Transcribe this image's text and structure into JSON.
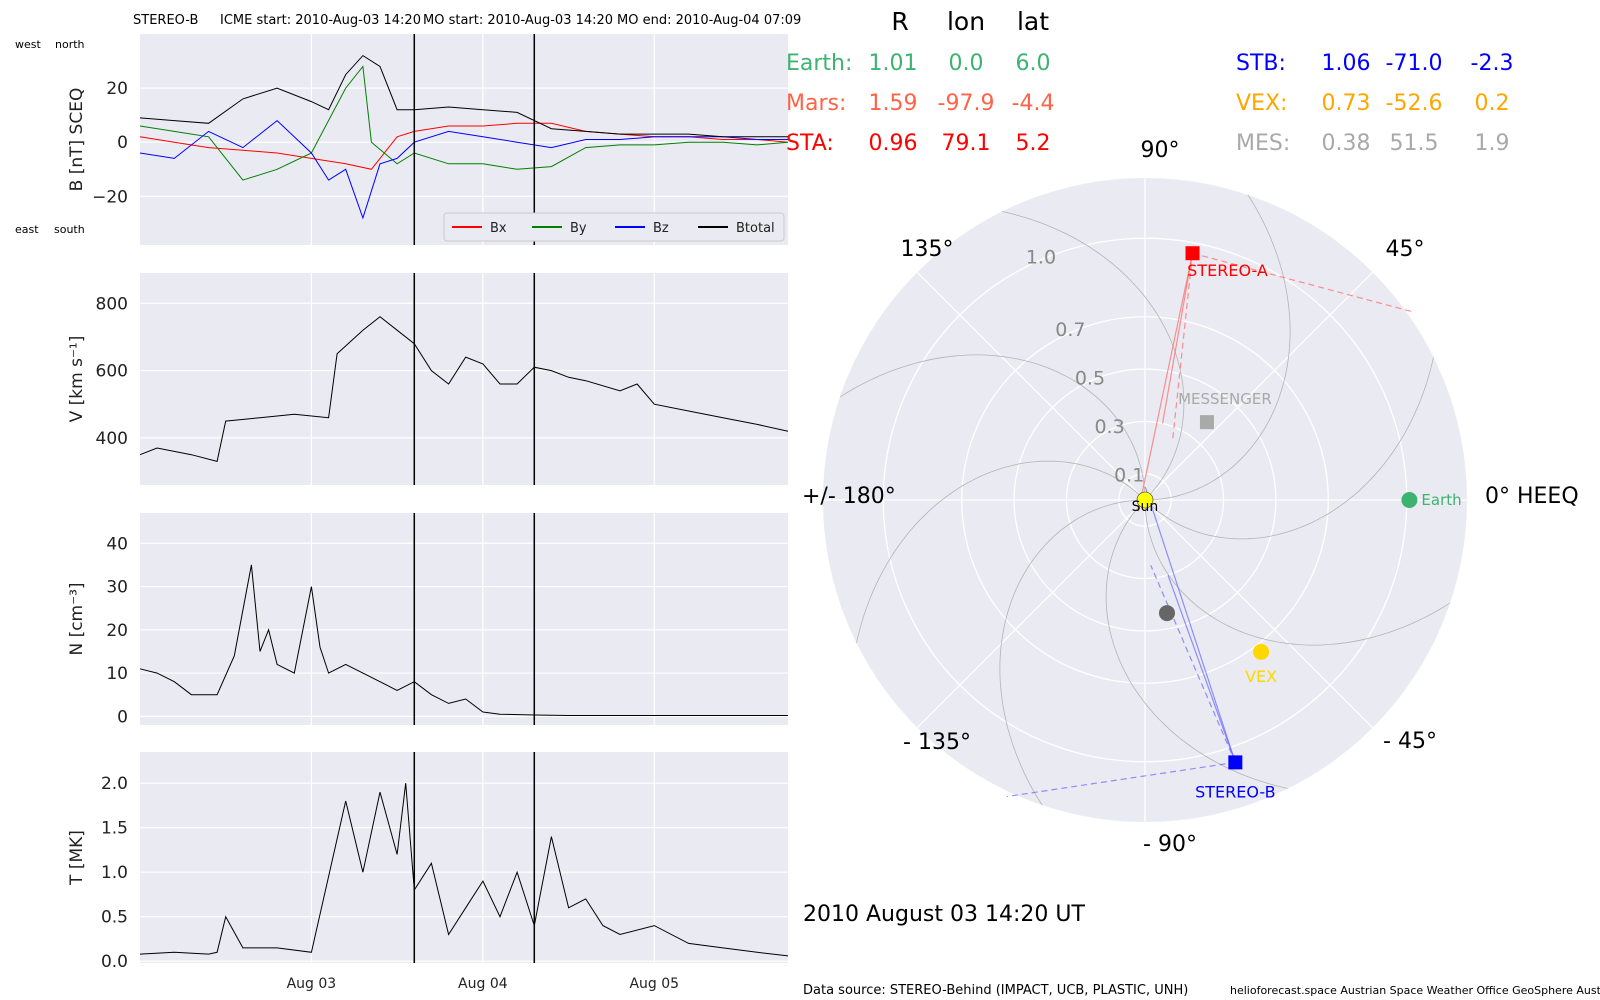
{
  "header": {
    "spacecraft": "STEREO-B",
    "icme_start": "ICME start: 2010-Aug-03 14:20",
    "mo_start": "MO start: 2010-Aug-03 14:20",
    "mo_end": "MO end: 2010-Aug-04 07:09"
  },
  "date_stamp": "2010 August 03  14:20 UT",
  "footer": {
    "source": "Data source: STEREO-Behind (IMPACT, UCB, PLASTIC, UNH)",
    "credits": "helioforecast.space   Austrian Space Weather Office   GeoSphere Austria"
  },
  "bfield_notes": {
    "west": "west",
    "north": "north",
    "east": "east",
    "south": "south"
  },
  "positions": {
    "headers": [
      "R",
      "lon",
      "lat"
    ],
    "rows": [
      {
        "name": "Earth:",
        "R": "1.01",
        "lon": "0.0",
        "lat": "6.0",
        "color": "#3cb371"
      },
      {
        "name": "Mars:",
        "R": "1.59",
        "lon": "-97.9",
        "lat": "-4.4",
        "color": "#ff6347"
      },
      {
        "name": "STA:",
        "R": "0.96",
        "lon": "79.1",
        "lat": "5.2",
        "color": "#ff0000"
      },
      {
        "name": "STB:",
        "R": "1.06",
        "lon": "-71.0",
        "lat": "-2.3",
        "color": "#0000ff"
      },
      {
        "name": "VEX:",
        "R": "0.73",
        "lon": "-52.6",
        "lat": "0.2",
        "color": "#ffa500"
      },
      {
        "name": "MES:",
        "R": "0.38",
        "lon": "51.5",
        "lat": "1.9",
        "color": "#a9a9a9"
      }
    ]
  },
  "polar": {
    "angle_labels": [
      "90°",
      "45°",
      "0° HEEQ",
      "- 45°",
      "- 90°",
      "- 135°",
      "+/- 180°",
      "135°"
    ],
    "radial_labels": [
      "0.1",
      "0.3",
      "0.5",
      "0.7",
      "1.0"
    ],
    "bodies": [
      {
        "label": "Sun",
        "r": 0.0,
        "lon": 0.0,
        "color": "#ffff00",
        "shape": "circle"
      },
      {
        "label": "Earth",
        "r": 1.01,
        "lon": 0.0,
        "color": "#3cb371",
        "shape": "circle"
      },
      {
        "label": "STEREO-A",
        "r": 0.96,
        "lon": 79.1,
        "color": "#ff0000",
        "shape": "square"
      },
      {
        "label": "STEREO-B",
        "r": 1.06,
        "lon": -71.0,
        "color": "#0000ff",
        "shape": "square"
      },
      {
        "label": "VEX",
        "r": 0.73,
        "lon": -52.6,
        "color": "#ffd700",
        "shape": "circle"
      },
      {
        "label": "MESSENGER",
        "r": 0.38,
        "lon": 51.5,
        "color": "#a9a9a9",
        "shape": "square"
      },
      {
        "label": "",
        "r": 0.44,
        "lon": -79.0,
        "color": "#666666",
        "shape": "circle"
      }
    ]
  },
  "chart_data": [
    {
      "type": "line",
      "ylabel": "B [nT] SCEQ",
      "xlim": [
        1,
        4.78
      ],
      "ylim": [
        -38,
        40
      ],
      "yticks": [
        "20",
        "0",
        "−20"
      ],
      "ytick_values": [
        20,
        0,
        -20
      ],
      "legend": "bottom-right",
      "series": [
        {
          "name": "Bx",
          "color": "#ff0000",
          "x": [
            1.0,
            1.2,
            1.4,
            1.6,
            1.8,
            2.0,
            2.2,
            2.35,
            2.5,
            2.6,
            2.8,
            3.0,
            3.2,
            3.4,
            3.6,
            3.8,
            4.0,
            4.2,
            4.4,
            4.6,
            4.78
          ],
          "y": [
            2,
            0,
            -2,
            -3,
            -4,
            -6,
            -8,
            -10,
            2,
            4,
            6,
            6,
            7,
            7,
            4,
            3,
            2,
            2,
            1,
            1,
            0
          ]
        },
        {
          "name": "By",
          "color": "#008000",
          "x": [
            1.0,
            1.2,
            1.4,
            1.6,
            1.8,
            2.0,
            2.2,
            2.3,
            2.35,
            2.5,
            2.6,
            2.8,
            3.0,
            3.2,
            3.4,
            3.6,
            3.8,
            4.0,
            4.2,
            4.4,
            4.6,
            4.78
          ],
          "y": [
            6,
            4,
            2,
            -14,
            -10,
            -4,
            20,
            28,
            0,
            -8,
            -4,
            -8,
            -8,
            -10,
            -9,
            -2,
            -1,
            -1,
            0,
            0,
            -1,
            0
          ]
        },
        {
          "name": "Bz",
          "color": "#0000ff",
          "x": [
            1.0,
            1.2,
            1.4,
            1.6,
            1.8,
            2.0,
            2.1,
            2.2,
            2.3,
            2.4,
            2.5,
            2.6,
            2.8,
            3.0,
            3.2,
            3.4,
            3.6,
            3.8,
            4.0,
            4.2,
            4.4,
            4.6,
            4.78
          ],
          "y": [
            -4,
            -6,
            4,
            -2,
            8,
            -4,
            -14,
            -10,
            -28,
            -8,
            -6,
            0,
            4,
            2,
            0,
            -2,
            1,
            1,
            2,
            2,
            2,
            1,
            1
          ]
        },
        {
          "name": "Btotal",
          "color": "#000000",
          "x": [
            1.0,
            1.2,
            1.4,
            1.6,
            1.8,
            2.0,
            2.1,
            2.2,
            2.3,
            2.4,
            2.5,
            2.6,
            2.8,
            3.0,
            3.2,
            3.4,
            3.6,
            3.8,
            4.0,
            4.2,
            4.4,
            4.6,
            4.78
          ],
          "y": [
            9,
            8,
            7,
            16,
            20,
            15,
            12,
            25,
            32,
            28,
            12,
            12,
            13,
            12,
            11,
            5,
            4,
            3,
            3,
            3,
            2,
            2,
            2
          ]
        }
      ]
    },
    {
      "type": "line",
      "ylabel": "V [km s⁻¹]",
      "xlim": [
        1,
        4.78
      ],
      "ylim": [
        260,
        890
      ],
      "yticks": [
        "800",
        "600",
        "400"
      ],
      "ytick_values": [
        800,
        600,
        400
      ],
      "series": [
        {
          "name": "V",
          "color": "#000000",
          "x": [
            1.0,
            1.1,
            1.3,
            1.45,
            1.5,
            1.7,
            1.9,
            2.1,
            2.15,
            2.3,
            2.4,
            2.5,
            2.6,
            2.7,
            2.8,
            2.9,
            3.0,
            3.1,
            3.2,
            3.3,
            3.4,
            3.5,
            3.6,
            3.8,
            3.9,
            4.0,
            4.2,
            4.4,
            4.6,
            4.78
          ],
          "y": [
            350,
            370,
            350,
            330,
            450,
            460,
            470,
            460,
            650,
            720,
            760,
            720,
            680,
            600,
            560,
            640,
            620,
            560,
            560,
            610,
            600,
            580,
            570,
            540,
            560,
            500,
            480,
            460,
            440,
            420
          ]
        }
      ]
    },
    {
      "type": "line",
      "ylabel": "N [cm⁻³]",
      "xlim": [
        1,
        4.78
      ],
      "ylim": [
        -2,
        47
      ],
      "yticks": [
        "40",
        "30",
        "20",
        "10",
        "0"
      ],
      "ytick_values": [
        40,
        30,
        20,
        10,
        0
      ],
      "series": [
        {
          "name": "N",
          "color": "#000000",
          "x": [
            1.0,
            1.1,
            1.2,
            1.3,
            1.45,
            1.55,
            1.65,
            1.7,
            1.75,
            1.8,
            1.9,
            2.0,
            2.05,
            2.1,
            2.2,
            2.3,
            2.4,
            2.5,
            2.6,
            2.7,
            2.8,
            2.9,
            3.0,
            3.1,
            3.3,
            3.5,
            3.7,
            4.0,
            4.3,
            4.78
          ],
          "y": [
            11,
            10,
            8,
            5,
            5,
            14,
            35,
            15,
            20,
            12,
            10,
            30,
            16,
            10,
            12,
            10,
            8,
            6,
            8,
            5,
            3,
            4,
            1,
            0.5,
            0.3,
            0.2,
            0.2,
            0.2,
            0.2,
            0.2
          ]
        }
      ]
    },
    {
      "type": "line",
      "ylabel": "T [MK]",
      "xlabel": "",
      "xlim": [
        1,
        4.78
      ],
      "ylim": [
        -0.02,
        2.35
      ],
      "yticks": [
        "2.0",
        "1.5",
        "1.0",
        "0.5",
        "0.0"
      ],
      "ytick_values": [
        2.0,
        1.5,
        1.0,
        0.5,
        0.0
      ],
      "xticks": [
        "Aug 03",
        "Aug 04",
        "Aug 05"
      ],
      "xtick_values": [
        2,
        3,
        4
      ],
      "series": [
        {
          "name": "T",
          "color": "#000000",
          "x": [
            1.0,
            1.2,
            1.4,
            1.45,
            1.5,
            1.6,
            1.8,
            2.0,
            2.2,
            2.3,
            2.4,
            2.5,
            2.55,
            2.6,
            2.7,
            2.8,
            2.9,
            3.0,
            3.1,
            3.2,
            3.3,
            3.4,
            3.5,
            3.6,
            3.7,
            3.8,
            4.0,
            4.2,
            4.4,
            4.6,
            4.78
          ],
          "y": [
            0.08,
            0.1,
            0.08,
            0.1,
            0.5,
            0.15,
            0.15,
            0.1,
            1.8,
            1.0,
            1.9,
            1.2,
            2.0,
            0.8,
            1.1,
            0.3,
            0.6,
            0.9,
            0.5,
            1.0,
            0.4,
            1.4,
            0.6,
            0.7,
            0.4,
            0.3,
            0.4,
            0.2,
            0.15,
            0.1,
            0.06
          ]
        }
      ]
    }
  ],
  "event_markers": [
    2.6,
    3.3
  ]
}
